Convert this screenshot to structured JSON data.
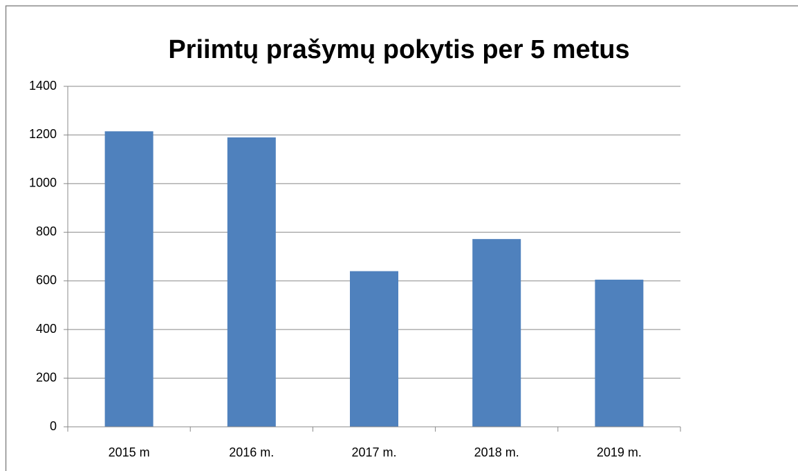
{
  "chart_data": {
    "type": "bar",
    "title": "Priimtų prašymų pokytis per 5 metus",
    "categories": [
      "2015 m",
      "2016 m.",
      "2017 m.",
      "2018 m.",
      "2019 m."
    ],
    "values": [
      1215,
      1190,
      640,
      772,
      605
    ],
    "color": "#4f81bd",
    "ylim": [
      0,
      1400
    ],
    "yticks": [
      0,
      200,
      400,
      600,
      800,
      1000,
      1200,
      1400
    ],
    "grid": true
  }
}
